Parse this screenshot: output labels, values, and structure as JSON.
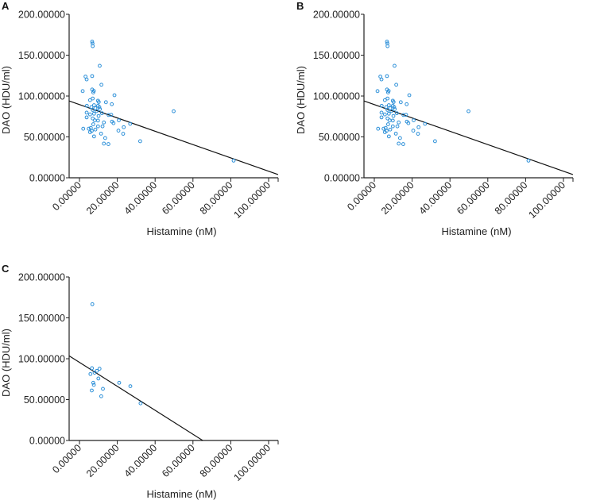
{
  "chart_data": [
    {
      "type": "scatter",
      "panel": "A",
      "xlabel": "Histamine (nM)",
      "ylabel": "DAO (HDU/ml)",
      "xlim": [
        -5.5,
        105
      ],
      "ylim": [
        0,
        200
      ],
      "xticks": [
        "0.00000",
        "20.00000",
        "40.00000",
        "60.00000",
        "80.00000",
        "100.00000"
      ],
      "xtick_values": [
        0,
        20,
        40,
        60,
        80,
        100
      ],
      "yticks": [
        "0.00000",
        "50.00000",
        "100.00000",
        "150.00000",
        "200.00000"
      ],
      "ytick_values": [
        0,
        50,
        100,
        150,
        200
      ],
      "grid": false,
      "fit_line": {
        "slope": -0.815,
        "intercept": 89.5
      },
      "points": [
        [
          6.7,
          166.6
        ],
        [
          6.9,
          164.3
        ],
        [
          7,
          161
        ],
        [
          10.7,
          137
        ],
        [
          6.7,
          124.4
        ],
        [
          3.2,
          123.8
        ],
        [
          3.8,
          120.3
        ],
        [
          11.6,
          113.8
        ],
        [
          1.7,
          106
        ],
        [
          6.7,
          108
        ],
        [
          7.6,
          106.3
        ],
        [
          7.3,
          104.4
        ],
        [
          18.5,
          101
        ],
        [
          7,
          97
        ],
        [
          5.6,
          95
        ],
        [
          9.8,
          94.3
        ],
        [
          14,
          92.4
        ],
        [
          10.2,
          92.7
        ],
        [
          17.1,
          90
        ],
        [
          3.9,
          88
        ],
        [
          7.7,
          88.8
        ],
        [
          9.8,
          88
        ],
        [
          6.3,
          86.5
        ],
        [
          10.5,
          86.5
        ],
        [
          8.4,
          85
        ],
        [
          7,
          83
        ],
        [
          9.1,
          81.6
        ],
        [
          10.8,
          84
        ],
        [
          49.8,
          81.4
        ],
        [
          3.8,
          79.7
        ],
        [
          5.6,
          77.5
        ],
        [
          7.7,
          78.4
        ],
        [
          11.9,
          79
        ],
        [
          15.4,
          76.8
        ],
        [
          16.8,
          77
        ],
        [
          10.1,
          75.6
        ],
        [
          3.8,
          73.9
        ],
        [
          7,
          72.6
        ],
        [
          8.1,
          70.3
        ],
        [
          9.8,
          70
        ],
        [
          20.8,
          70.3
        ],
        [
          17.2,
          68.7
        ],
        [
          18,
          66.8
        ],
        [
          26.8,
          66
        ],
        [
          12.9,
          67.7
        ],
        [
          7.3,
          65.5
        ],
        [
          12.2,
          62.9
        ],
        [
          23.4,
          61.9
        ],
        [
          9.8,
          62.9
        ],
        [
          6,
          61
        ],
        [
          2,
          60
        ],
        [
          4.9,
          60
        ],
        [
          8.4,
          59
        ],
        [
          6.5,
          57.4
        ],
        [
          20.6,
          57.7
        ],
        [
          5.6,
          55.8
        ],
        [
          11.4,
          54
        ],
        [
          23.1,
          53.8
        ],
        [
          7.7,
          50.6
        ],
        [
          13.6,
          48.6
        ],
        [
          32.1,
          44.7
        ],
        [
          12.9,
          41.8
        ],
        [
          15.3,
          41.2
        ],
        [
          81.5,
          21
        ]
      ]
    },
    {
      "type": "scatter",
      "panel": "B",
      "xlabel": "Histamine (nM)",
      "ylabel": "DAO (HDU/ml)",
      "xlim": [
        -5.5,
        105
      ],
      "ylim": [
        0,
        200
      ],
      "xticks": [
        "0.00000",
        "20.00000",
        "40.00000",
        "60.00000",
        "80.00000",
        "100.00000"
      ],
      "xtick_values": [
        0,
        20,
        40,
        60,
        80,
        100
      ],
      "yticks": [
        "0.00000",
        "50.00000",
        "100.00000",
        "150.00000",
        "200.00000"
      ],
      "ytick_values": [
        0,
        50,
        100,
        150,
        200
      ],
      "grid": false,
      "fit_line": {
        "slope": -0.815,
        "intercept": 89.5
      },
      "points": [
        [
          6.7,
          166.6
        ],
        [
          6.9,
          164.3
        ],
        [
          7,
          161
        ],
        [
          10.7,
          137
        ],
        [
          6.7,
          124.4
        ],
        [
          3.2,
          123.8
        ],
        [
          3.8,
          120.3
        ],
        [
          11.6,
          113.8
        ],
        [
          1.7,
          106
        ],
        [
          6.7,
          108
        ],
        [
          7.6,
          106.3
        ],
        [
          7.3,
          104.4
        ],
        [
          18.5,
          101
        ],
        [
          7,
          97
        ],
        [
          5.6,
          95
        ],
        [
          9.8,
          94.3
        ],
        [
          14,
          92.4
        ],
        [
          10.2,
          92.7
        ],
        [
          17.1,
          90
        ],
        [
          3.9,
          88
        ],
        [
          7.7,
          88.8
        ],
        [
          9.8,
          88
        ],
        [
          6.3,
          86.5
        ],
        [
          10.5,
          86.5
        ],
        [
          8.4,
          85
        ],
        [
          7,
          83
        ],
        [
          9.1,
          81.6
        ],
        [
          10.8,
          84
        ],
        [
          49.8,
          81.4
        ],
        [
          3.8,
          79.7
        ],
        [
          5.6,
          77.5
        ],
        [
          7.7,
          78.4
        ],
        [
          11.9,
          79
        ],
        [
          15.4,
          76.8
        ],
        [
          16.8,
          77
        ],
        [
          10.1,
          75.6
        ],
        [
          3.8,
          73.9
        ],
        [
          7,
          72.6
        ],
        [
          8.1,
          70.3
        ],
        [
          9.8,
          70
        ],
        [
          20.8,
          70.3
        ],
        [
          17.2,
          68.7
        ],
        [
          18,
          66.8
        ],
        [
          26.8,
          66
        ],
        [
          12.9,
          67.7
        ],
        [
          7.3,
          65.5
        ],
        [
          12.2,
          62.9
        ],
        [
          23.4,
          61.9
        ],
        [
          9.8,
          62.9
        ],
        [
          6,
          61
        ],
        [
          2,
          60
        ],
        [
          4.9,
          60
        ],
        [
          8.4,
          59
        ],
        [
          6.5,
          57.4
        ],
        [
          20.6,
          57.7
        ],
        [
          5.6,
          55.8
        ],
        [
          11.4,
          54
        ],
        [
          23.1,
          53.8
        ],
        [
          7.7,
          50.6
        ],
        [
          13.6,
          48.6
        ],
        [
          32.1,
          44.7
        ],
        [
          12.9,
          41.8
        ],
        [
          15.3,
          41.2
        ],
        [
          81.5,
          21
        ]
      ]
    },
    {
      "type": "scatter",
      "panel": "C",
      "xlabel": "Histamine (nM)",
      "ylabel": "DAO (HDU/ml)",
      "xlim": [
        -5.5,
        105
      ],
      "ylim": [
        0,
        200
      ],
      "xticks": [
        "0.00000",
        "20.00000",
        "40.00000",
        "60.00000",
        "80.00000",
        "100.00000"
      ],
      "xtick_values": [
        0,
        20,
        40,
        60,
        80,
        100
      ],
      "yticks": [
        "0.00000",
        "50.00000",
        "100.00000",
        "150.00000",
        "200.00000"
      ],
      "ytick_values": [
        0,
        50,
        100,
        150,
        200
      ],
      "grid": false,
      "fit_line": {
        "slope": -1.465,
        "intercept": 95.5
      },
      "points": [
        [
          6.8,
          166.7
        ],
        [
          6.6,
          88.4
        ],
        [
          10.6,
          87.8
        ],
        [
          9.2,
          85.2
        ],
        [
          8,
          82.9
        ],
        [
          5.8,
          81.3
        ],
        [
          10,
          75.8
        ],
        [
          7.3,
          70.6
        ],
        [
          7.6,
          68
        ],
        [
          21,
          70.6
        ],
        [
          26.9,
          66.4
        ],
        [
          12.4,
          63.2
        ],
        [
          6.5,
          61.2
        ],
        [
          11.5,
          54.1
        ],
        [
          32.3,
          45.4
        ]
      ]
    }
  ],
  "style": {
    "point_color": "#2b8fd8",
    "line_color": "#111111",
    "axis_color": "#222222"
  }
}
